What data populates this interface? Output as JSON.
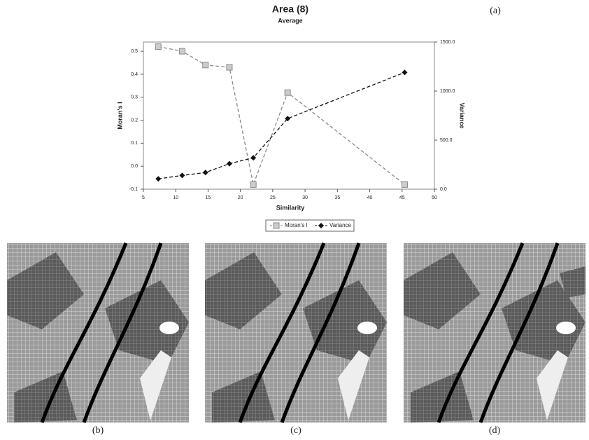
{
  "chart_data": {
    "type": "line",
    "title": "Area (8)",
    "subtitle": "Average",
    "x_label": "Similarity",
    "y_label": "Moran's I",
    "y2_label": "Variance",
    "x": [
      7.3,
      11,
      14.6,
      18.3,
      22,
      27.3,
      45.4
    ],
    "series": [
      {
        "name": "Moran's I",
        "color": "#8a8a8a",
        "values": [
          0.52,
          0.5,
          0.44,
          0.43,
          -0.08,
          0.32,
          -0.08
        ]
      },
      {
        "name": "Variance",
        "color": "#111111",
        "axis": "y2",
        "values": [
          105,
          140,
          170,
          260,
          320,
          720,
          1190
        ]
      }
    ],
    "xlim": [
      5,
      50
    ],
    "xticks": [
      5,
      10,
      15,
      20,
      25,
      30,
      35,
      40,
      45,
      50
    ],
    "ylim": [
      -0.1,
      0.54
    ],
    "yticks": [
      {
        "value": -0.1,
        "label": "-0.1"
      },
      {
        "value": 0,
        "label": "0.0"
      },
      0.1,
      0.2,
      0.3,
      0.4,
      0.5
    ],
    "y2lim": [
      0,
      1500
    ],
    "y2ticks": [
      {
        "value": 0,
        "label": "0.0"
      },
      {
        "value": 500,
        "label": "500.0"
      },
      {
        "value": 1000,
        "label": "1000.0"
      },
      {
        "value": 1500,
        "label": "1500.0"
      }
    ],
    "grid": false,
    "legend": "bottom"
  },
  "panels": [
    {
      "label": "(a)"
    },
    {
      "label": "(b)"
    },
    {
      "label": "(c)"
    },
    {
      "label": "(d)"
    }
  ]
}
